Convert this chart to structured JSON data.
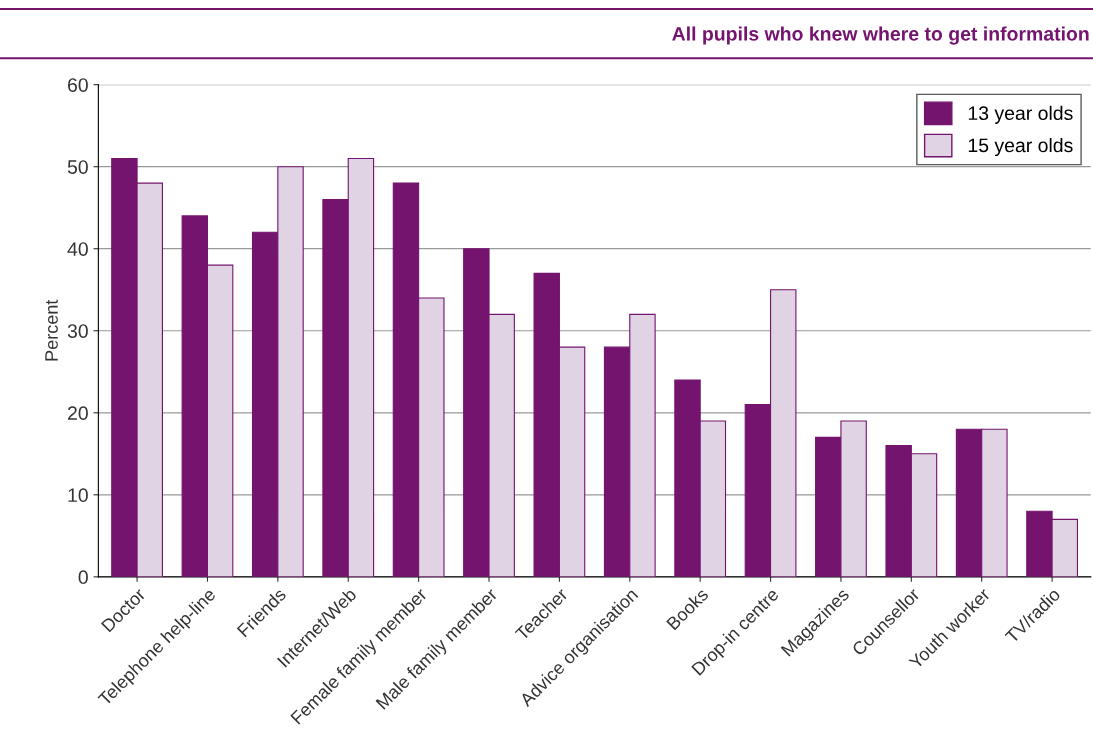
{
  "chart_data": {
    "type": "bar",
    "subtitle": "All pupils who knew where to get information",
    "ylabel": "Percent",
    "categories": [
      "Doctor",
      "Telephone help-line",
      "Friends",
      "Internet/Web",
      "Female family member",
      "Male family member",
      "Teacher",
      "Advice organisation",
      "Books",
      "Drop-in centre",
      "Magazines",
      "Counsellor",
      "Youth worker",
      "TV/radio"
    ],
    "series": [
      {
        "name": "13 year olds",
        "color": "#74146f",
        "values": [
          51,
          44,
          42,
          46,
          48,
          40,
          37,
          28,
          24,
          21,
          17,
          16,
          18,
          8
        ]
      },
      {
        "name": "15 year olds",
        "color": "#e0d4e4",
        "values": [
          48,
          38,
          50,
          51,
          34,
          32,
          28,
          32,
          19,
          35,
          19,
          15,
          18,
          7
        ]
      }
    ],
    "ylim": [
      0,
      60
    ],
    "yticks": [
      0,
      10,
      20,
      30,
      40,
      50,
      60
    ],
    "grid": "y",
    "legend": "top right"
  }
}
